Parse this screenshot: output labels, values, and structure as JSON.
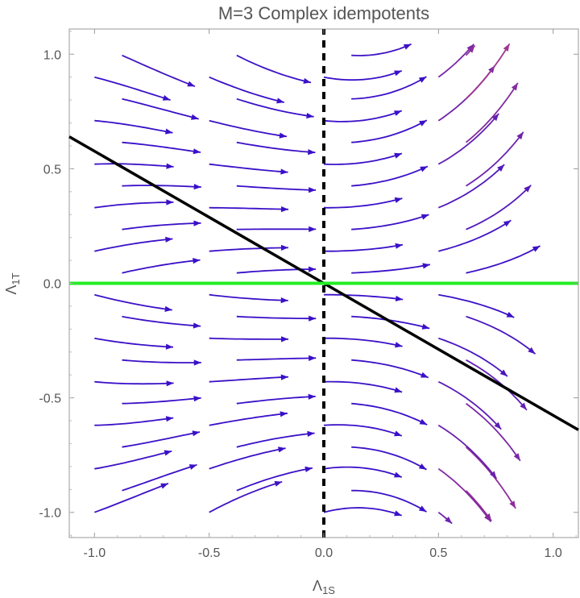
{
  "chart_data": {
    "type": "streamplot",
    "title": "M=3 Complex idempotents",
    "xlabel": "Λ",
    "xlabel_sub": "1S",
    "ylabel": "Λ",
    "ylabel_sub": "1T",
    "xlim": [
      -1.11,
      1.11
    ],
    "ylim": [
      -1.11,
      1.11
    ],
    "xticks": [
      -1.0,
      -0.5,
      0.0,
      0.5,
      1.0
    ],
    "yticks": [
      -1.0,
      -0.5,
      0.0,
      0.5,
      1.0
    ],
    "xtick_labels": [
      "-1.0",
      "-0.5",
      "0.0",
      "0.5",
      "1.0"
    ],
    "ytick_labels": [
      "-1.0",
      "-0.5",
      "0.0",
      "0.5",
      "1.0"
    ],
    "grid": false,
    "lines": [
      {
        "kind": "solid",
        "color": "#000000",
        "points": [
          [
            -1.11,
            0.64
          ],
          [
            1.11,
            -0.64
          ]
        ]
      },
      {
        "kind": "solid",
        "color": "#22ee22",
        "points": [
          [
            -1.11,
            0.0
          ],
          [
            1.11,
            0.0
          ]
        ]
      },
      {
        "kind": "dashed",
        "color": "#000000",
        "points": [
          [
            0.0,
            -1.11
          ],
          [
            0.0,
            1.11
          ]
        ]
      }
    ],
    "colors": {
      "slow": "#3a10c8",
      "mid": "#a8388c",
      "fast": "#ffa010"
    }
  }
}
